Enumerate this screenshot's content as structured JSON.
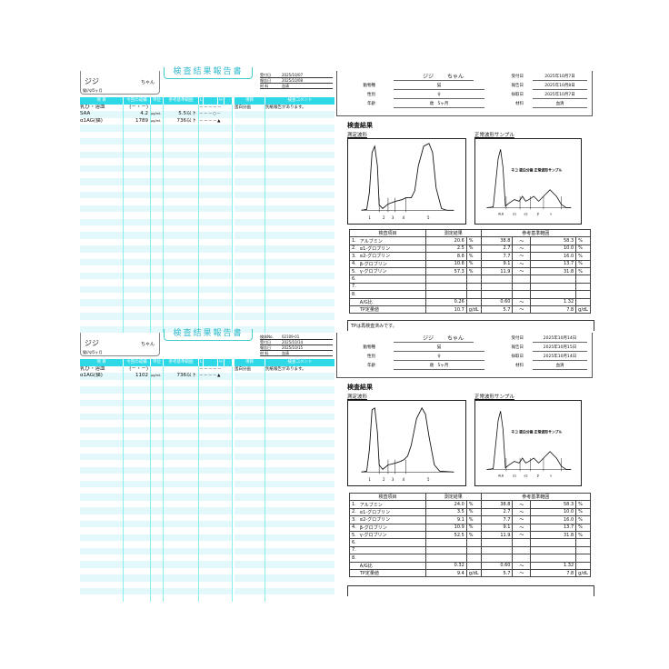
{
  "reports": [
    {
      "left": {
        "patient_name": "ジジ",
        "suffix": "ちゃん",
        "species_age": "猫//♀/5ヶ月",
        "title": "検査結果報告書",
        "meta": [
          [
            "受付日",
            "2025/10/07"
          ],
          [
            "報告日",
            "2025/10/08"
          ],
          [
            "材 料",
            "血清"
          ]
        ],
        "headers": [
          "項 目",
          "今回の成績",
          "単位",
          "参考基準範囲",
          "L",
          "",
          "H",
          ""
        ],
        "rows": [
          [
            "乳び・溶血",
            "(－・－)",
            "",
            "",
            "－－－－－"
          ],
          [
            "SAA",
            "4.2",
            "μg/mL",
            "5.5以下",
            "－－－○－"
          ],
          [
            "α1AG(猫)",
            "1789",
            "μg/mL",
            "736以下",
            "－－－－▲"
          ]
        ],
        "comment_headers": [
          "項目",
          "検査コメント"
        ],
        "comments": [
          [
            "蛋白分画",
            "別紙報告があります。"
          ]
        ]
      },
      "right": {
        "patient_name": "ジジ",
        "suffix": "ちゃん",
        "fields": [
          [
            "動物種",
            "猫"
          ],
          [
            "性別",
            "♀"
          ],
          [
            "年齢",
            "歳　5ヶ月"
          ]
        ],
        "dates": [
          [
            "受付日",
            "2025年10月7日"
          ],
          [
            "報告日",
            "2025年10月8日"
          ],
          [
            "採取日",
            "2025年10月7日"
          ],
          [
            "材料",
            "血清"
          ]
        ],
        "section_title": "検査結果",
        "measured_label": "測定波形",
        "normal_label": "正常波形サンプル",
        "sample_caption": "ネコ 蛋白分画 正常波形サンプル",
        "sample_axis": [
          "ALB",
          "α1",
          "α2",
          "β",
          "γ"
        ],
        "peak_labels": [
          "1",
          "2",
          "3",
          "4",
          "5"
        ],
        "table_headers": [
          "検査項目",
          "測定結果",
          "参考基準範囲"
        ],
        "rows": [
          [
            "1.",
            "アルブミン",
            "20.6",
            "%",
            "38.8",
            "～",
            "58.3",
            "%"
          ],
          [
            "2.",
            "α1-グロブリン",
            "2.5",
            "%",
            "2.7",
            "～",
            "10.0",
            "%"
          ],
          [
            "3.",
            "α2-グロブリン",
            "8.8",
            "%",
            "7.7",
            "～",
            "16.0",
            "%"
          ],
          [
            "4.",
            "β-グロブリン",
            "10.8",
            "%",
            "9.1",
            "～",
            "13.7",
            "%"
          ],
          [
            "5.",
            "γ-グロブリン",
            "57.3",
            "%",
            "11.9",
            "～",
            "31.8",
            "%"
          ],
          [
            "6.",
            "",
            "",
            "",
            "",
            "",
            "",
            ""
          ],
          [
            "7.",
            "",
            "",
            "",
            "",
            "",
            "",
            ""
          ],
          [
            "8.",
            "",
            "",
            "",
            "",
            "",
            "",
            ""
          ],
          [
            "",
            "A/G比",
            "0.26",
            "",
            "0.60",
            "～",
            "1.32",
            ""
          ],
          [
            "",
            "TP定量値",
            "10.7",
            "g/dL",
            "5.7",
            "～",
            "7.8",
            "g/dL"
          ]
        ],
        "comment": "TPは再検査済みです。"
      }
    },
    {
      "left": {
        "patient_name": "ジジ",
        "suffix": "ちゃん",
        "species_age": "猫//♀/5ヶ月",
        "title": "検査結果報告書",
        "meta": [
          [
            "検体No.",
            "02109-01"
          ],
          [
            "受付日",
            "2025/10/14"
          ],
          [
            "報告日",
            "2025/10/15"
          ],
          [
            "材 料",
            "血清"
          ]
        ],
        "headers": [
          "項 目",
          "今回の成績",
          "単位",
          "参考基準範囲",
          "L",
          "",
          "H",
          ""
        ],
        "rows": [
          [
            "乳び・溶血",
            "(－・－)",
            "",
            "",
            "－－－－－"
          ],
          [
            "α1AG(猫)",
            "1102",
            "μg/mL",
            "736以下",
            "－－－－▲"
          ]
        ],
        "comment_headers": [
          "項目",
          "検査コメント"
        ],
        "comments": [
          [
            "蛋白分画",
            "別紙報告があります。"
          ]
        ]
      },
      "right": {
        "patient_name": "ジジ",
        "suffix": "ちゃん",
        "fields": [
          [
            "動物種",
            "猫"
          ],
          [
            "性別",
            "♀"
          ],
          [
            "年齢",
            "歳　5ヶ月"
          ]
        ],
        "dates": [
          [
            "受付日",
            "2025年10月14日"
          ],
          [
            "報告日",
            "2025年10月15日"
          ],
          [
            "採取日",
            "2025年10月14日"
          ],
          [
            "材料",
            "血清"
          ]
        ],
        "section_title": "検査結果",
        "measured_label": "測定波形",
        "normal_label": "正常波形サンプル",
        "sample_caption": "ネコ 蛋白分画 正常波形サンプル",
        "sample_axis": [
          "ALB",
          "α1",
          "α2",
          "β",
          "γ"
        ],
        "peak_labels": [
          "1",
          "2",
          "3",
          "4",
          "5"
        ],
        "table_headers": [
          "検査項目",
          "測定結果",
          "参考基準範囲"
        ],
        "rows": [
          [
            "1.",
            "アルブミン",
            "24.0",
            "%",
            "38.8",
            "～",
            "58.3",
            "%"
          ],
          [
            "2.",
            "α1-グロブリン",
            "3.5",
            "%",
            "2.7",
            "～",
            "10.0",
            "%"
          ],
          [
            "3.",
            "α2-グロブリン",
            "9.1",
            "%",
            "7.7",
            "～",
            "16.0",
            "%"
          ],
          [
            "4.",
            "β-グロブリン",
            "10.9",
            "%",
            "9.1",
            "～",
            "13.7",
            "%"
          ],
          [
            "5.",
            "γ-グロブリン",
            "52.5",
            "%",
            "11.9",
            "～",
            "31.8",
            "%"
          ],
          [
            "6.",
            "",
            "",
            "",
            "",
            "",
            "",
            ""
          ],
          [
            "7.",
            "",
            "",
            "",
            "",
            "",
            "",
            ""
          ],
          [
            "8.",
            "",
            "",
            "",
            "",
            "",
            "",
            ""
          ],
          [
            "",
            "A/G比",
            "0.32",
            "",
            "0.60",
            "～",
            "1.32",
            ""
          ],
          [
            "",
            "TP定量値",
            "9.4",
            "g/dL",
            "5.7",
            "～",
            "7.8",
            "g/dL"
          ]
        ],
        "comment": ""
      }
    }
  ],
  "colors": {
    "accent": "#2fd8e6",
    "row_tint": "#e3f8fa"
  }
}
